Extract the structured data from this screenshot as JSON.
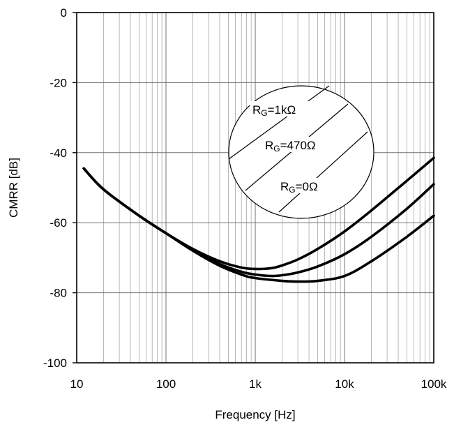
{
  "chart_data": {
    "type": "line",
    "title": "",
    "xlabel": "Frequency [Hz]",
    "ylabel": "CMRR [dB]",
    "xscale": "log",
    "xlim": [
      10,
      100000
    ],
    "ylim": [
      -100,
      0
    ],
    "grid": true,
    "x_tick_values": [
      10,
      100,
      1000,
      10000,
      100000
    ],
    "x_tick_labels": [
      "10",
      "100",
      "1k",
      "10k",
      "100k"
    ],
    "y_tick_values": [
      0,
      -20,
      -40,
      -60,
      -80,
      -100
    ],
    "y_tick_labels": [
      "0",
      "-20",
      "-40",
      "-60",
      "-80",
      "-100"
    ],
    "series": [
      {
        "label_main": "R",
        "label_sub": "G",
        "label_rest": "=1kΩ",
        "points": [
          [
            12,
            -44.5
          ],
          [
            20,
            -50.5
          ],
          [
            50,
            -58
          ],
          [
            100,
            -63
          ],
          [
            200,
            -67.5
          ],
          [
            400,
            -71
          ],
          [
            700,
            -72.8
          ],
          [
            1000,
            -73.2
          ],
          [
            1500,
            -73
          ],
          [
            2000,
            -72.2
          ],
          [
            3000,
            -70.5
          ],
          [
            5000,
            -67.5
          ],
          [
            10000,
            -62.5
          ],
          [
            20000,
            -56.5
          ],
          [
            50000,
            -48
          ],
          [
            100000,
            -41.5
          ]
        ]
      },
      {
        "label_main": "R",
        "label_sub": "G",
        "label_rest": "=470Ω",
        "points": [
          [
            12,
            -44.5
          ],
          [
            20,
            -50.5
          ],
          [
            50,
            -58
          ],
          [
            100,
            -63
          ],
          [
            200,
            -67.8
          ],
          [
            400,
            -71.8
          ],
          [
            700,
            -74
          ],
          [
            1000,
            -74.8
          ],
          [
            1500,
            -75.2
          ],
          [
            2000,
            -75
          ],
          [
            3000,
            -74.2
          ],
          [
            5000,
            -72.5
          ],
          [
            10000,
            -69
          ],
          [
            20000,
            -64
          ],
          [
            50000,
            -56
          ],
          [
            100000,
            -49
          ]
        ]
      },
      {
        "label_main": "R",
        "label_sub": "G",
        "label_rest": "=0Ω",
        "points": [
          [
            12,
            -44.5
          ],
          [
            20,
            -50.5
          ],
          [
            50,
            -58
          ],
          [
            100,
            -63
          ],
          [
            200,
            -68
          ],
          [
            400,
            -72.3
          ],
          [
            700,
            -74.8
          ],
          [
            1000,
            -75.8
          ],
          [
            2000,
            -76.6
          ],
          [
            3000,
            -76.8
          ],
          [
            5000,
            -76.6
          ],
          [
            10000,
            -75.2
          ],
          [
            20000,
            -71
          ],
          [
            50000,
            -64
          ],
          [
            100000,
            -58
          ]
        ]
      }
    ]
  }
}
